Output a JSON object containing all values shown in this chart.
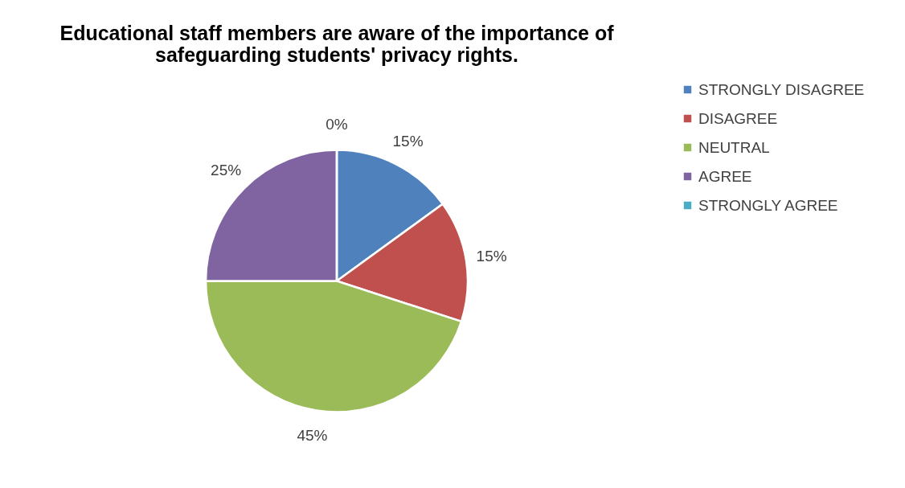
{
  "chart_data": {
    "type": "pie",
    "title": "Educational staff members are aware of the importance of safeguarding students' privacy rights.",
    "categories": [
      "STRONGLY DISAGREE",
      "DISAGREE",
      "NEUTRAL",
      "AGREE",
      "STRONGLY AGREE"
    ],
    "values": [
      15,
      15,
      45,
      25,
      0
    ],
    "colors": [
      "#4f81bd",
      "#c0504d",
      "#9bbb59",
      "#8064a2",
      "#4bacc6"
    ],
    "value_labels": [
      "15%",
      "15%",
      "45%",
      "25%",
      "0%"
    ],
    "legend": "right"
  }
}
